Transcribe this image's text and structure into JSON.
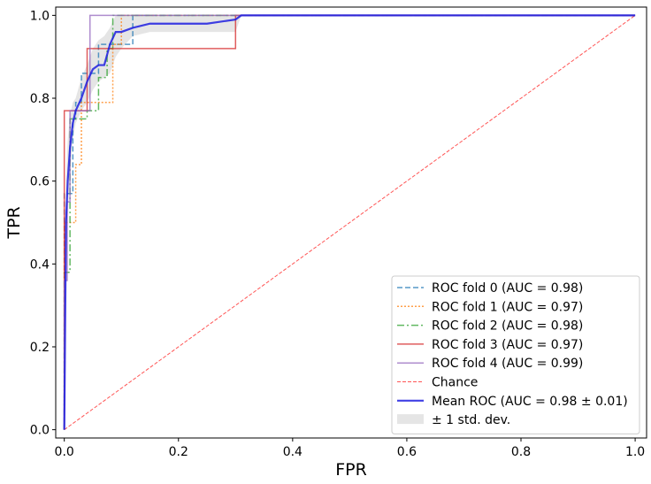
{
  "chart_data": {
    "type": "line",
    "title": "",
    "xlabel": "FPR",
    "ylabel": "TPR",
    "xlim": [
      -0.015,
      1.02
    ],
    "ylim": [
      -0.02,
      1.02
    ],
    "xticks": [
      0.0,
      0.2,
      0.4,
      0.6,
      0.8,
      1.0
    ],
    "yticks": [
      0.0,
      0.2,
      0.4,
      0.6,
      0.8,
      1.0
    ],
    "xtick_labels": [
      "0.0",
      "0.2",
      "0.4",
      "0.6",
      "0.8",
      "1.0"
    ],
    "ytick_labels": [
      "0.0",
      "0.2",
      "0.4",
      "0.6",
      "0.8",
      "1.0"
    ],
    "grid": false,
    "legend_position": "lower-right",
    "band": {
      "name": "± 1 std. dev.",
      "color": "#d0d0d0",
      "x": [
        0.0,
        0.003,
        0.006,
        0.01,
        0.015,
        0.02,
        0.03,
        0.04,
        0.05,
        0.06,
        0.07,
        0.08,
        0.09,
        0.1,
        0.12,
        0.15,
        0.2,
        0.3,
        0.31,
        1.0
      ],
      "lower": [
        0.0,
        0.38,
        0.52,
        0.62,
        0.7,
        0.74,
        0.77,
        0.79,
        0.82,
        0.84,
        0.85,
        0.86,
        0.9,
        0.92,
        0.95,
        0.96,
        0.96,
        0.96,
        1.0,
        1.0
      ],
      "upper": [
        0.0,
        0.6,
        0.7,
        0.76,
        0.79,
        0.8,
        0.85,
        0.88,
        0.92,
        0.94,
        0.95,
        0.97,
        1.0,
        1.0,
        1.0,
        1.0,
        1.0,
        1.0,
        1.0,
        1.0
      ]
    },
    "series": [
      {
        "name": "ROC fold 0 (AUC = 0.98)",
        "color": "#1f77b4",
        "dash": "6,3",
        "width": 1.5,
        "opacity": 0.75,
        "x": [
          0.0,
          0.0,
          0.015,
          0.015,
          0.02,
          0.02,
          0.03,
          0.03,
          0.06,
          0.06,
          0.12,
          0.12,
          1.0
        ],
        "y": [
          0.0,
          0.57,
          0.57,
          0.75,
          0.75,
          0.79,
          0.79,
          0.86,
          0.86,
          0.93,
          0.93,
          1.0,
          1.0
        ]
      },
      {
        "name": "ROC fold 1 (AUC = 0.97)",
        "color": "#ff7f0e",
        "dash": "2,2",
        "width": 1.5,
        "opacity": 0.75,
        "x": [
          0.0,
          0.0,
          0.02,
          0.02,
          0.03,
          0.03,
          0.05,
          0.05,
          0.085,
          0.085,
          0.1,
          0.1,
          1.0
        ],
        "y": [
          0.0,
          0.5,
          0.5,
          0.64,
          0.64,
          0.79,
          0.79,
          0.79,
          0.79,
          0.93,
          0.93,
          1.0,
          1.0
        ]
      },
      {
        "name": "ROC fold 2 (AUC = 0.98)",
        "color": "#2ca02c",
        "dash": "8,3,2,3",
        "width": 1.5,
        "opacity": 0.75,
        "x": [
          0.0,
          0.0,
          0.01,
          0.01,
          0.04,
          0.04,
          0.06,
          0.06,
          0.075,
          0.075,
          0.085,
          0.085,
          1.0
        ],
        "y": [
          0.0,
          0.38,
          0.38,
          0.75,
          0.75,
          0.77,
          0.77,
          0.85,
          0.85,
          0.92,
          0.92,
          1.0,
          1.0
        ]
      },
      {
        "name": "ROC fold 3 (AUC = 0.97)",
        "color": "#d62728",
        "dash": "",
        "width": 1.5,
        "opacity": 0.75,
        "x": [
          0.0,
          0.0,
          0.0,
          0.0,
          0.04,
          0.04,
          0.3,
          0.3,
          1.0
        ],
        "y": [
          0.0,
          0.46,
          0.46,
          0.77,
          0.77,
          0.92,
          0.92,
          1.0,
          1.0
        ]
      },
      {
        "name": "ROC fold 4 (AUC = 0.99)",
        "color": "#9467bd",
        "dash": "",
        "width": 1.5,
        "opacity": 0.75,
        "x": [
          0.0,
          0.0,
          0.005,
          0.005,
          0.01,
          0.01,
          0.045,
          0.045,
          1.0
        ],
        "y": [
          0.0,
          0.36,
          0.36,
          0.55,
          0.55,
          0.77,
          0.77,
          1.0,
          1.0
        ]
      },
      {
        "name": "Chance",
        "color": "#ff5555",
        "dash": "4,2",
        "width": 1,
        "opacity": 1,
        "x": [
          0.0,
          1.0
        ],
        "y": [
          0.0,
          1.0
        ]
      },
      {
        "name": "Mean ROC (AUC = 0.98 ± 0.01)",
        "color": "#1f1fe0",
        "dash": "",
        "width": 2.2,
        "opacity": 0.85,
        "x": [
          0.0,
          0.003,
          0.006,
          0.01,
          0.015,
          0.02,
          0.03,
          0.04,
          0.05,
          0.06,
          0.07,
          0.08,
          0.09,
          0.1,
          0.12,
          0.15,
          0.2,
          0.25,
          0.3,
          0.31,
          0.5,
          1.0
        ],
        "y": [
          0.0,
          0.5,
          0.6,
          0.68,
          0.74,
          0.77,
          0.8,
          0.84,
          0.87,
          0.88,
          0.88,
          0.93,
          0.96,
          0.96,
          0.97,
          0.98,
          0.98,
          0.98,
          0.99,
          1.0,
          1.0,
          1.0
        ]
      }
    ]
  }
}
